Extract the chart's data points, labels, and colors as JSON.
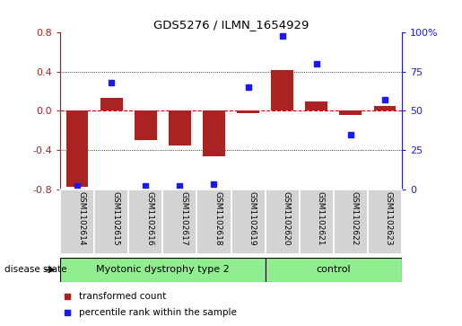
{
  "title": "GDS5276 / ILMN_1654929",
  "samples": [
    "GSM1102614",
    "GSM1102615",
    "GSM1102616",
    "GSM1102617",
    "GSM1102618",
    "GSM1102619",
    "GSM1102620",
    "GSM1102621",
    "GSM1102622",
    "GSM1102623"
  ],
  "transformed_count": [
    -0.78,
    0.13,
    -0.3,
    -0.35,
    -0.46,
    -0.02,
    0.42,
    0.1,
    -0.04,
    0.05
  ],
  "percentile_rank": [
    2,
    68,
    2,
    2,
    3,
    65,
    98,
    80,
    35,
    57
  ],
  "disease_groups": [
    {
      "label": "Myotonic dystrophy type 2",
      "start": 0,
      "end": 6
    },
    {
      "label": "control",
      "start": 6,
      "end": 10
    }
  ],
  "group_color": "#90ee90",
  "ylim_left": [
    -0.8,
    0.8
  ],
  "ylim_right": [
    0,
    100
  ],
  "yticks_left": [
    -0.8,
    -0.4,
    0.0,
    0.4,
    0.8
  ],
  "yticks_right": [
    0,
    25,
    50,
    75,
    100
  ],
  "ytick_labels_right": [
    "0",
    "25",
    "50",
    "75",
    "100%"
  ],
  "bar_color": "#aa2222",
  "dot_color": "#1a1aee",
  "zero_line_color": "#cc0000",
  "bg_color": "#ffffff",
  "sample_box_color": "#d3d3d3",
  "legend_bar_label": "transformed count",
  "legend_dot_label": "percentile rank within the sample",
  "disease_state_label": "disease state"
}
